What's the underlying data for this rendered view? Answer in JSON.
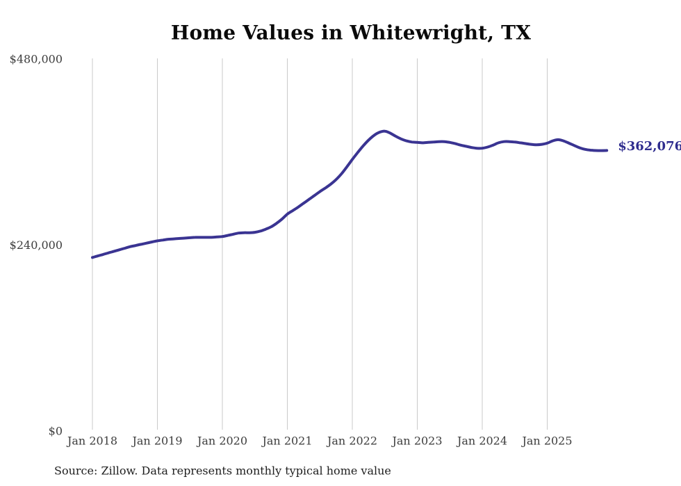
{
  "chart_data": {
    "type": "line",
    "title": "Home Values in Whitewright, TX",
    "xlabel": "",
    "ylabel": "",
    "ylim": [
      0,
      480000
    ],
    "grid": "vertical-year-gridlines-only",
    "legend": "none",
    "x_interval": "monthly",
    "x_start": "Jan 2018",
    "x_end": "Dec 2025",
    "x_tick_labels": [
      "Jan 2018",
      "Jan 2019",
      "Jan 2020",
      "Jan 2021",
      "Jan 2022",
      "Jan 2023",
      "Jan 2024",
      "Jan 2025"
    ],
    "y_ticks": [
      {
        "label": "$0",
        "value": 0
      },
      {
        "label": "$240,000",
        "value": 240000
      },
      {
        "label": "$480,000",
        "value": 480000
      }
    ],
    "end_value": 362076,
    "end_value_label": "$362,076",
    "series": [
      {
        "name": "Monthly typical home value",
        "values": [
          224000,
          226000,
          228000,
          230000,
          232000,
          234000,
          236000,
          238000,
          239500,
          241000,
          242500,
          244000,
          245500,
          246500,
          247500,
          248000,
          248500,
          249000,
          249500,
          250000,
          250000,
          250000,
          250000,
          250500,
          251000,
          252500,
          254000,
          255500,
          256000,
          256000,
          256500,
          258000,
          260500,
          263500,
          268000,
          273500,
          280000,
          284500,
          289000,
          294000,
          299000,
          304000,
          309000,
          313500,
          318500,
          324500,
          332000,
          341000,
          350500,
          359500,
          368000,
          375500,
          381500,
          385500,
          387000,
          384500,
          380500,
          377000,
          374500,
          373000,
          372500,
          372000,
          372500,
          373000,
          373500,
          373500,
          372500,
          371000,
          369000,
          367500,
          366000,
          365000,
          365000,
          366500,
          369000,
          372000,
          373500,
          373500,
          373000,
          372000,
          371000,
          370000,
          369500,
          370000,
          371500,
          374500,
          376000,
          374500,
          371500,
          368500,
          365500,
          363500,
          362500,
          362000,
          361900,
          362076
        ]
      }
    ]
  },
  "footer": {
    "source": "Source: Zillow. Data represents monthly typical home value"
  },
  "colors": {
    "line": "#3a3492",
    "end_label": "#2e2c8e",
    "grid": "#c9c9c9",
    "axis_text": "#3d3d3d",
    "title_text": "#0a0a0a",
    "source_text": "#1e1e1e",
    "background": "#ffffff"
  }
}
